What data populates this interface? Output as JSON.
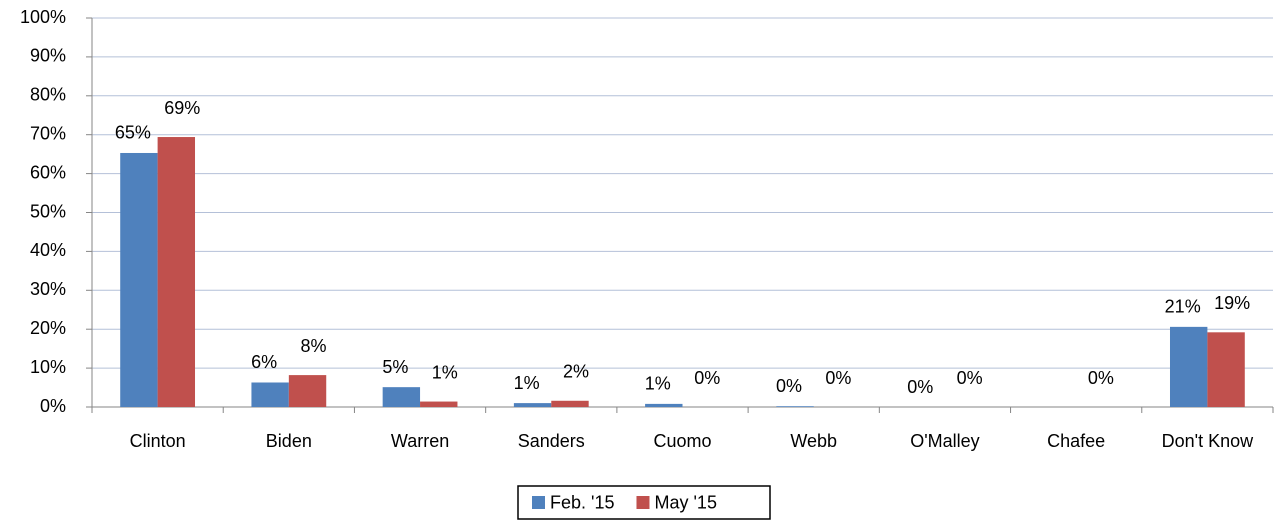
{
  "chart_data": {
    "type": "bar",
    "categories": [
      "Clinton",
      "Biden",
      "Warren",
      "Sanders",
      "Cuomo",
      "Webb",
      "O'Malley",
      "Chafee",
      "Don't Know"
    ],
    "series": [
      {
        "name": "Feb. '15",
        "color": "#4f81bd",
        "values": [
          65.3,
          6.3,
          5.1,
          1.0,
          0.8,
          0.2,
          0,
          null,
          20.6
        ],
        "value_labels": [
          "65%",
          "6%",
          "5%",
          "1%",
          "1%",
          "0%",
          "0%",
          null,
          "21%"
        ]
      },
      {
        "name": "May '15",
        "color": "#c0504d",
        "values": [
          69.4,
          8.2,
          1.4,
          1.6,
          0,
          0,
          0,
          0,
          19.2
        ],
        "value_labels": [
          "69%",
          "8%",
          "1%",
          "2%",
          "0%",
          "0%",
          "0%",
          "0%",
          "19%"
        ]
      }
    ],
    "ylim": [
      0,
      100
    ],
    "yticks": [
      {
        "value": 0,
        "label": "0%"
      },
      {
        "value": 10,
        "label": "10%"
      },
      {
        "value": 20,
        "label": "20%"
      },
      {
        "value": 30,
        "label": "30%"
      },
      {
        "value": 40,
        "label": "40%"
      },
      {
        "value": 50,
        "label": "50%"
      },
      {
        "value": 60,
        "label": "60%"
      },
      {
        "value": 70,
        "label": "70%"
      },
      {
        "value": 80,
        "label": "80%"
      },
      {
        "value": 90,
        "label": "90%"
      },
      {
        "value": 100,
        "label": "100%"
      }
    ],
    "grid": true,
    "legend": "bottom"
  }
}
